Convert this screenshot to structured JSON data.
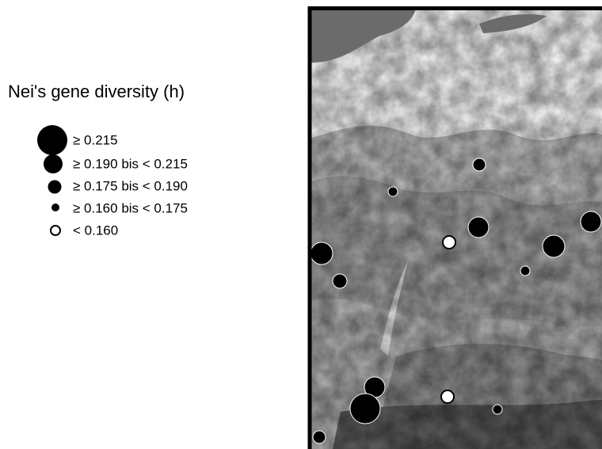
{
  "legend": {
    "title": "Nei's gene diversity (h)",
    "items": [
      "≥ 0.215",
      "≥ 0.190 bis < 0.215",
      "≥ 0.175 bis < 0.190",
      "≥ 0.160 bis < 0.175",
      "< 0.160"
    ]
  }
}
